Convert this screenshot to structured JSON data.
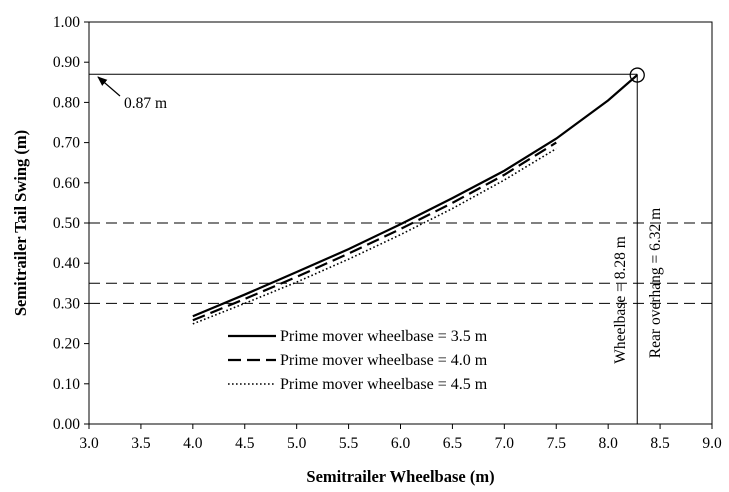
{
  "chart_data": {
    "type": "line",
    "title": "",
    "xlabel": "Semitrailer Wheelbase (m)",
    "ylabel": "Semitrailer Tail Swing (m)",
    "xlim": [
      3.0,
      9.0
    ],
    "ylim": [
      0.0,
      1.0
    ],
    "x_ticks": [
      "3.0",
      "3.5",
      "4.0",
      "4.5",
      "5.0",
      "5.5",
      "6.0",
      "6.5",
      "7.0",
      "7.5",
      "8.0",
      "8.5",
      "9.0"
    ],
    "y_ticks": [
      "0.00",
      "0.10",
      "0.20",
      "0.30",
      "0.40",
      "0.50",
      "0.60",
      "0.70",
      "0.80",
      "0.90",
      "1.00"
    ],
    "grid": false,
    "legend_position": "bottom-center",
    "series": [
      {
        "name": "Prime mover wheelbase = 3.5 m",
        "style": "solid",
        "x": [
          4.0,
          4.5,
          5.0,
          5.5,
          6.0,
          6.5,
          7.0,
          7.5,
          8.0,
          8.28
        ],
        "y": [
          0.268,
          0.322,
          0.378,
          0.435,
          0.497,
          0.562,
          0.63,
          0.71,
          0.805,
          0.868
        ]
      },
      {
        "name": "Prime mover wheelbase = 4.0 m",
        "style": "dashed",
        "x": [
          4.0,
          4.5,
          5.0,
          5.5,
          6.0,
          6.5,
          7.0,
          7.5
        ],
        "y": [
          0.258,
          0.311,
          0.366,
          0.424,
          0.485,
          0.55,
          0.62,
          0.7
        ]
      },
      {
        "name": "Prime mover wheelbase = 4.5 m",
        "style": "dotted",
        "x": [
          4.0,
          4.5,
          5.0,
          5.5,
          6.0,
          6.5,
          7.0,
          7.5
        ],
        "y": [
          0.249,
          0.3,
          0.353,
          0.41,
          0.471,
          0.536,
          0.607,
          0.685
        ]
      }
    ],
    "reference_lines": {
      "horizontal_dashed": [
        0.3,
        0.35,
        0.5
      ],
      "horizontal_marker": 0.87,
      "vertical_marker": 8.28
    },
    "marker_point": {
      "x": 8.28,
      "y": 0.868
    },
    "annotations": {
      "tail_swing_label": "0.87 m",
      "wheelbase_label": "Wheelbase = 8.28 m",
      "rear_overhang_label": "Rear overhang = 6.32 m"
    }
  }
}
